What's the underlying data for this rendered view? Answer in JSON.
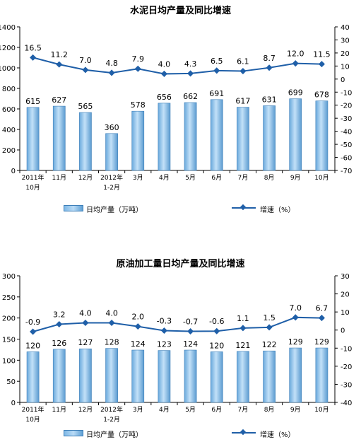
{
  "chart_data": [
    {
      "type": "bar",
      "title": "水泥日均产量及同比增速",
      "categories": [
        [
          "2011年",
          "10月"
        ],
        [
          "11月"
        ],
        [
          "12月"
        ],
        [
          "2012年",
          "1-2月"
        ],
        [
          "3月"
        ],
        [
          "4月"
        ],
        [
          "5月"
        ],
        [
          "6月"
        ],
        [
          "7月"
        ],
        [
          "8月"
        ],
        [
          "9月"
        ],
        [
          "10月"
        ]
      ],
      "series": [
        {
          "name": "日均产量（万吨）",
          "type": "bar",
          "axis": "left",
          "values": [
            615,
            627,
            565,
            360,
            578,
            656,
            662,
            691,
            617,
            631,
            699,
            678
          ],
          "labels": [
            "615",
            "627",
            "565",
            "360",
            "578",
            "656",
            "662",
            "691",
            "617",
            "631",
            "699",
            "678"
          ]
        },
        {
          "name": "增速（%）",
          "type": "line",
          "axis": "right",
          "values": [
            16.5,
            11.2,
            7.0,
            4.8,
            7.9,
            4.0,
            4.3,
            6.5,
            6.1,
            8.7,
            12.0,
            11.5
          ],
          "labels": [
            "16.5",
            "11.2",
            "7.0",
            "4.8",
            "7.9",
            "4.0",
            "4.3",
            "6.5",
            "6.1",
            "8.7",
            "12.0",
            "11.5"
          ]
        }
      ],
      "ylim_left": [
        0,
        1400
      ],
      "ylim_right": [
        -70,
        40
      ],
      "yticks_left": [
        "0",
        "200",
        "400",
        "600",
        "800",
        "1000",
        "1200",
        "1400"
      ],
      "yticks_right": [
        "-70",
        "-60",
        "-50",
        "-40",
        "-30",
        "-20",
        "-10",
        "0",
        "10",
        "20",
        "30",
        "40"
      ],
      "legend_position": "bottom",
      "grid": false
    },
    {
      "type": "bar",
      "title": "原油加工量日均产量及同比增速",
      "categories": [
        [
          "2011年",
          "10月"
        ],
        [
          "11月"
        ],
        [
          "12月"
        ],
        [
          "2012年",
          "1-2月"
        ],
        [
          "3月"
        ],
        [
          "4月"
        ],
        [
          "5月"
        ],
        [
          "6月"
        ],
        [
          "7月"
        ],
        [
          "8月"
        ],
        [
          "9月"
        ],
        [
          "10月"
        ]
      ],
      "series": [
        {
          "name": "日均产量（万吨）",
          "type": "bar",
          "axis": "left",
          "values": [
            120,
            126,
            127,
            128,
            124,
            123,
            124,
            120,
            121,
            122,
            129,
            129
          ],
          "labels": [
            "120",
            "126",
            "127",
            "128",
            "124",
            "123",
            "124",
            "120",
            "121",
            "122",
            "129",
            "129"
          ]
        },
        {
          "name": "增速（%）",
          "type": "line",
          "axis": "right",
          "values": [
            -0.9,
            3.2,
            4.0,
            4.0,
            2.0,
            -0.3,
            -0.7,
            -0.6,
            1.1,
            1.5,
            7.0,
            6.7
          ],
          "labels": [
            "-0.9",
            "3.2",
            "4.0",
            "4.0",
            "2.0",
            "-0.3",
            "-0.7",
            "-0.6",
            "1.1",
            "1.5",
            "7.0",
            "6.7"
          ]
        }
      ],
      "ylim_left": [
        0,
        300
      ],
      "ylim_right": [
        -40,
        30
      ],
      "yticks_left": [
        "0",
        "50",
        "100",
        "150",
        "200",
        "250",
        "300"
      ],
      "yticks_right": [
        "-40",
        "-30",
        "-20",
        "-10",
        "0",
        "10",
        "20",
        "30"
      ],
      "legend_position": "bottom",
      "grid": false
    }
  ],
  "colors": {
    "bar_fill": "#8fc3ea",
    "bar_edge": "#3e7fb8",
    "line": "#1f5fa8",
    "axis": "#000000"
  }
}
